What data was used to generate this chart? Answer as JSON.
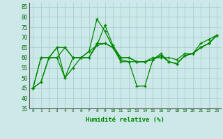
{
  "xlabel": "Humidité relative (%)",
  "xlim": [
    -0.5,
    23.5
  ],
  "ylim": [
    35,
    87
  ],
  "yticks": [
    35,
    40,
    45,
    50,
    55,
    60,
    65,
    70,
    75,
    80,
    85
  ],
  "xticks": [
    0,
    1,
    2,
    3,
    4,
    5,
    6,
    7,
    8,
    9,
    10,
    11,
    12,
    13,
    14,
    15,
    16,
    17,
    18,
    19,
    20,
    21,
    22,
    23
  ],
  "bg_color": "#cce8e8",
  "grid_color": "#aacece",
  "line_color": "#008800",
  "lines": [
    [
      45,
      48,
      60,
      60,
      65,
      60,
      60,
      63,
      79,
      73,
      65,
      58,
      58,
      46,
      46,
      59,
      62,
      58,
      57,
      61,
      62,
      67,
      69,
      71
    ],
    [
      45,
      48,
      60,
      60,
      50,
      55,
      60,
      63,
      66,
      67,
      65,
      59,
      58,
      58,
      58,
      59,
      61,
      58,
      57,
      61,
      62,
      65,
      67,
      71
    ],
    [
      45,
      60,
      60,
      65,
      50,
      60,
      60,
      60,
      66,
      76,
      66,
      60,
      60,
      58,
      58,
      60,
      60,
      60,
      59,
      62,
      62,
      65,
      67,
      71
    ],
    [
      45,
      60,
      60,
      65,
      65,
      60,
      60,
      60,
      67,
      67,
      65,
      60,
      60,
      58,
      58,
      59,
      61,
      58,
      57,
      61,
      62,
      65,
      67,
      71
    ]
  ]
}
